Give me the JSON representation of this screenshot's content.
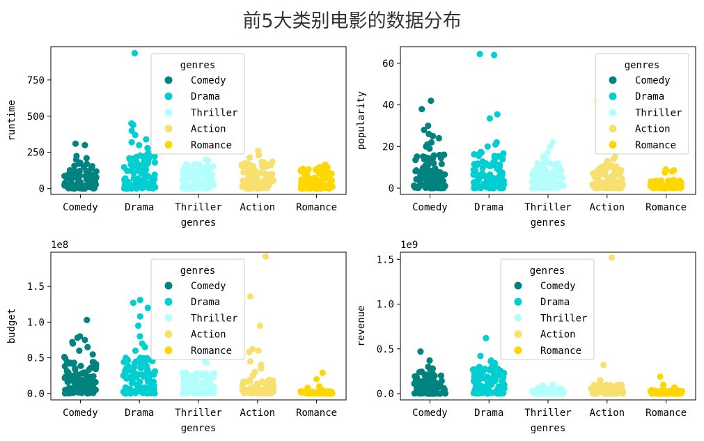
{
  "title": "前5大类别电影的数据分布",
  "colors": {
    "Comedy": "#00827f",
    "Drama": "#00ced1",
    "Thriller": "#b3fffc",
    "Action": "#f7e06e",
    "Romance": "#ffd700"
  },
  "chart_data": [
    {
      "type": "scatter",
      "subtype": "strip",
      "xlabel": "genres",
      "ylabel": "runtime",
      "categories": [
        "Comedy",
        "Drama",
        "Thriller",
        "Action",
        "Romance"
      ],
      "yticks": [
        0,
        250,
        500,
        750
      ],
      "ytick_labels": [
        "0",
        "250",
        "500",
        "750"
      ],
      "ylim": [
        -40,
        980
      ],
      "offset_label": "",
      "legend": {
        "title": "genres",
        "entries": [
          "Comedy",
          "Drama",
          "Thriller",
          "Action",
          "Romance"
        ],
        "loc": "upper center"
      },
      "series": [
        {
          "category": "Comedy",
          "dense_range": [
            0,
            180
          ],
          "outliers": [
            310,
            300,
            225,
            210,
            200
          ]
        },
        {
          "category": "Drama",
          "dense_range": [
            0,
            250
          ],
          "outliers": [
            935,
            450,
            440,
            400,
            370,
            340,
            320,
            300,
            280
          ]
        },
        {
          "category": "Thriller",
          "dense_range": [
            0,
            180
          ],
          "outliers": [
            200,
            195
          ]
        },
        {
          "category": "Action",
          "dense_range": [
            0,
            190
          ],
          "outliers": [
            260,
            230,
            215
          ]
        },
        {
          "category": "Romance",
          "dense_range": [
            0,
            160
          ],
          "outliers": [
            165
          ]
        }
      ]
    },
    {
      "type": "scatter",
      "subtype": "strip",
      "xlabel": "genres",
      "ylabel": "popularity",
      "categories": [
        "Comedy",
        "Drama",
        "Thriller",
        "Action",
        "Romance"
      ],
      "yticks": [
        0,
        20,
        40,
        60
      ],
      "ytick_labels": [
        "0",
        "20",
        "40",
        "60"
      ],
      "ylim": [
        -3,
        68
      ],
      "offset_label": "",
      "legend": {
        "title": "genres",
        "entries": [
          "Comedy",
          "Drama",
          "Thriller",
          "Action",
          "Romance"
        ],
        "loc": "upper right"
      },
      "series": [
        {
          "category": "Comedy",
          "dense_range": [
            0,
            17
          ],
          "outliers": [
            42,
            38,
            30,
            28,
            26,
            25,
            24,
            22,
            21,
            20,
            19
          ]
        },
        {
          "category": "Drama",
          "dense_range": [
            0,
            18
          ],
          "outliers": [
            64.5,
            64,
            35.5,
            33.5,
            22,
            21,
            20
          ]
        },
        {
          "category": "Thriller",
          "dense_range": [
            0,
            12
          ],
          "outliers": [
            22,
            20,
            17,
            15,
            14
          ]
        },
        {
          "category": "Action",
          "dense_range": [
            0,
            11
          ],
          "outliers": [
            42,
            15,
            14,
            13
          ]
        },
        {
          "category": "Romance",
          "dense_range": [
            0,
            4
          ],
          "outliers": [
            9,
            8.5,
            8,
            7.5
          ]
        }
      ]
    },
    {
      "type": "scatter",
      "subtype": "strip",
      "xlabel": "genres",
      "ylabel": "budget",
      "categories": [
        "Comedy",
        "Drama",
        "Thriller",
        "Action",
        "Romance"
      ],
      "yticks": [
        0,
        0.5,
        1.0,
        1.5
      ],
      "ytick_labels": [
        "0.0",
        "0.5",
        "1.0",
        "1.5"
      ],
      "ylim": [
        -0.09,
        1.98
      ],
      "offset_label": "1e8",
      "legend": {
        "title": "genres",
        "entries": [
          "Comedy",
          "Drama",
          "Thriller",
          "Action",
          "Romance"
        ],
        "loc": "upper center"
      },
      "series": [
        {
          "category": "Comedy",
          "dense_range": [
            0,
            0.55
          ],
          "outliers": [
            1.03,
            0.8,
            0.78,
            0.75,
            0.72,
            0.7,
            0.65,
            0.6
          ]
        },
        {
          "category": "Drama",
          "dense_range": [
            0,
            0.5
          ],
          "outliers": [
            1.31,
            1.27,
            1.2,
            1.08,
            0.95,
            0.8,
            0.7,
            0.65,
            0.6
          ]
        },
        {
          "category": "Thriller",
          "dense_range": [
            0,
            0.3
          ],
          "outliers": [
            0.55,
            0.45,
            0.43
          ]
        },
        {
          "category": "Action",
          "dense_range": [
            0,
            0.2
          ],
          "outliers": [
            1.92,
            1.36,
            0.95,
            0.62,
            0.6,
            0.58,
            0.45,
            0.4,
            0.35,
            0.3,
            0.25
          ]
        },
        {
          "category": "Romance",
          "dense_range": [
            0,
            0.03
          ],
          "outliers": [
            0.29,
            0.2,
            0.1,
            0.08,
            0.05
          ]
        }
      ]
    },
    {
      "type": "scatter",
      "subtype": "strip",
      "xlabel": "genres",
      "ylabel": "revenue",
      "categories": [
        "Comedy",
        "Drama",
        "Thriller",
        "Action",
        "Romance"
      ],
      "yticks": [
        0,
        0.5,
        1.0,
        1.5
      ],
      "ytick_labels": [
        "0.0",
        "0.5",
        "1.0",
        "1.5"
      ],
      "ylim": [
        -0.07,
        1.58
      ],
      "offset_label": "1e9",
      "legend": {
        "title": "genres",
        "entries": [
          "Comedy",
          "Drama",
          "Thriller",
          "Action",
          "Romance"
        ],
        "loc": "upper center"
      },
      "series": [
        {
          "category": "Comedy",
          "dense_range": [
            0,
            0.25
          ],
          "outliers": [
            0.47,
            0.37,
            0.3,
            0.28
          ]
        },
        {
          "category": "Drama",
          "dense_range": [
            0,
            0.3
          ],
          "outliers": [
            0.62,
            0.42,
            0.37,
            0.36,
            0.34
          ]
        },
        {
          "category": "Thriller",
          "dense_range": [
            0,
            0.06
          ],
          "outliers": [
            0.1,
            0.09,
            0.08
          ]
        },
        {
          "category": "Action",
          "dense_range": [
            0,
            0.1
          ],
          "outliers": [
            1.52,
            0.32,
            0.15,
            0.12
          ]
        },
        {
          "category": "Romance",
          "dense_range": [
            0,
            0.04
          ],
          "outliers": [
            0.19,
            0.1,
            0.07,
            0.05
          ]
        }
      ]
    }
  ]
}
